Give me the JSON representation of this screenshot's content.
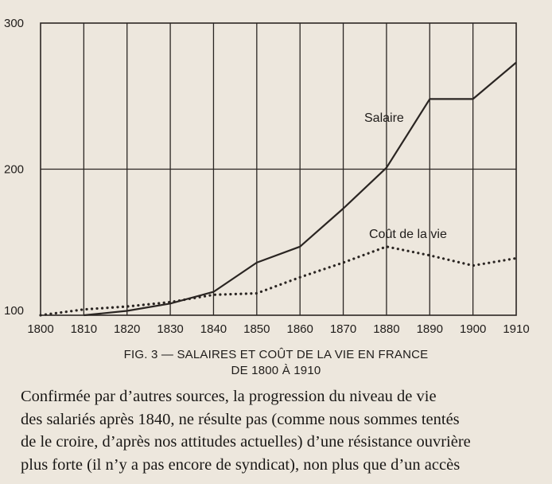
{
  "chart_data": {
    "type": "line",
    "title": "FIG. 3 — SALAIRES ET COÛT DE LA VIE EN FRANCE",
    "subtitle": "DE 1800 À 1910",
    "xlabel": "",
    "ylabel": "",
    "x": [
      1800,
      1810,
      1820,
      1830,
      1840,
      1850,
      1860,
      1870,
      1880,
      1890,
      1900,
      1910
    ],
    "x_ticks": [
      "1800",
      "1810",
      "1820",
      "1830",
      "1840",
      "1850",
      "1860",
      "1870",
      "1880",
      "1890",
      "1900",
      "1910"
    ],
    "y_ticks": [
      "100",
      "200",
      "300"
    ],
    "ylim": [
      100,
      300
    ],
    "grid": true,
    "series": [
      {
        "name": "Salaire",
        "style": "solid",
        "color": "#2a2522",
        "points": [
          [
            1810,
            100
          ],
          [
            1820,
            103
          ],
          [
            1830,
            108
          ],
          [
            1840,
            116
          ],
          [
            1850,
            136
          ],
          [
            1860,
            147
          ],
          [
            1870,
            173
          ],
          [
            1880,
            201
          ],
          [
            1890,
            248
          ],
          [
            1900,
            248
          ],
          [
            1910,
            273
          ]
        ]
      },
      {
        "name": "Coût de la vie",
        "style": "dotted",
        "color": "#2a2522",
        "points": [
          [
            1800,
            100
          ],
          [
            1810,
            104
          ],
          [
            1820,
            106
          ],
          [
            1830,
            109
          ],
          [
            1840,
            114
          ],
          [
            1850,
            115
          ],
          [
            1860,
            126
          ],
          [
            1870,
            136
          ],
          [
            1880,
            147
          ],
          [
            1890,
            141
          ],
          [
            1900,
            134
          ],
          [
            1910,
            139
          ]
        ]
      }
    ]
  },
  "text": {
    "lines": [
      "Confirmée par d’autres sources, la progression du niveau de vie",
      "des salariés après 1840, ne résulte pas (comme nous sommes tentés",
      "de le croire, d’après nos attitudes actuelles) d’une résistance ouvrière",
      "plus forte (il n’y a pas encore de syndicat), non plus que d’un accès"
    ]
  }
}
